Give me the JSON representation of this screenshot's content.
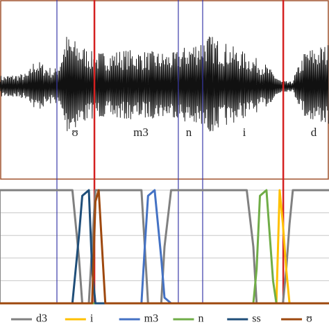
{
  "chart_data": {
    "type": "line",
    "annotations": [
      "ʊ",
      "m3",
      "n",
      "i",
      "d"
    ],
    "boundaries": [
      {
        "x": 17.3,
        "color": "#3a3aa8"
      },
      {
        "x": 28.7,
        "color": "#d42020"
      },
      {
        "x": 54.2,
        "color": "#3a3aa8"
      },
      {
        "x": 61.6,
        "color": "#3a3aa8"
      },
      {
        "x": 86.1,
        "color": "#d42020"
      }
    ],
    "x": [
      0,
      22,
      24,
      25,
      27,
      28,
      29,
      30,
      32,
      43,
      44,
      45,
      47,
      49,
      50,
      52,
      75,
      77,
      78,
      79,
      81,
      83,
      84,
      85,
      86,
      87,
      88,
      89,
      90,
      100
    ],
    "xlim": [
      0,
      100
    ],
    "ylim": [
      0,
      1
    ],
    "yticks": [
      0,
      0.2,
      0.4,
      0.6,
      0.8,
      1
    ],
    "grid": true,
    "legend": "bottom",
    "series": [
      {
        "name": "d3",
        "color": "#808080",
        "values": [
          1,
          1,
          0.4,
          0,
          0,
          0.5,
          1,
          1,
          1,
          1,
          0.5,
          0,
          0,
          0,
          0.5,
          1,
          1,
          0.5,
          0,
          0,
          0,
          0,
          0,
          0,
          0,
          0.3,
          0.7,
          1,
          1,
          1
        ]
      },
      {
        "name": "i",
        "color": "#ffc000",
        "values": [
          0,
          0,
          0,
          0,
          0,
          0,
          0,
          0,
          0,
          0,
          0,
          0,
          0,
          0,
          0,
          0,
          0,
          0,
          0,
          0,
          0,
          0,
          0,
          1,
          0.7,
          0.3,
          0,
          0,
          0,
          0
        ]
      },
      {
        "name": "m3",
        "color": "#4472c4",
        "values": [
          0,
          0,
          0,
          0,
          0,
          0,
          0,
          0,
          0,
          0,
          0.5,
          0.95,
          1,
          0.4,
          0.05,
          0,
          0,
          0,
          0,
          0,
          0,
          0,
          0,
          0,
          0,
          0,
          0,
          0,
          0,
          0
        ]
      },
      {
        "name": "n",
        "color": "#70ad47",
        "values": [
          0,
          0,
          0,
          0,
          0,
          0,
          0,
          0,
          0,
          0,
          0,
          0,
          0,
          0,
          0,
          0,
          0,
          0,
          0.3,
          0.95,
          1,
          0.2,
          0,
          0,
          0,
          0,
          0,
          0,
          0,
          0
        ]
      },
      {
        "name": "ss",
        "color": "#1f4e79",
        "values": [
          0,
          0,
          0.6,
          0.95,
          1,
          0.3,
          0,
          0,
          0,
          0,
          0,
          0,
          0,
          0,
          0,
          0,
          0,
          0,
          0,
          0,
          0,
          0,
          0,
          0,
          0,
          0,
          0,
          0,
          0,
          0
        ]
      },
      {
        "name": "ʊ",
        "color": "#9e480e",
        "values": [
          0,
          0,
          0,
          0,
          0,
          0,
          0.9,
          1,
          0,
          0,
          0,
          0,
          0,
          0,
          0,
          0,
          0,
          0,
          0,
          0,
          0,
          0,
          0,
          0,
          0,
          0,
          0,
          0,
          0,
          0
        ]
      }
    ]
  }
}
